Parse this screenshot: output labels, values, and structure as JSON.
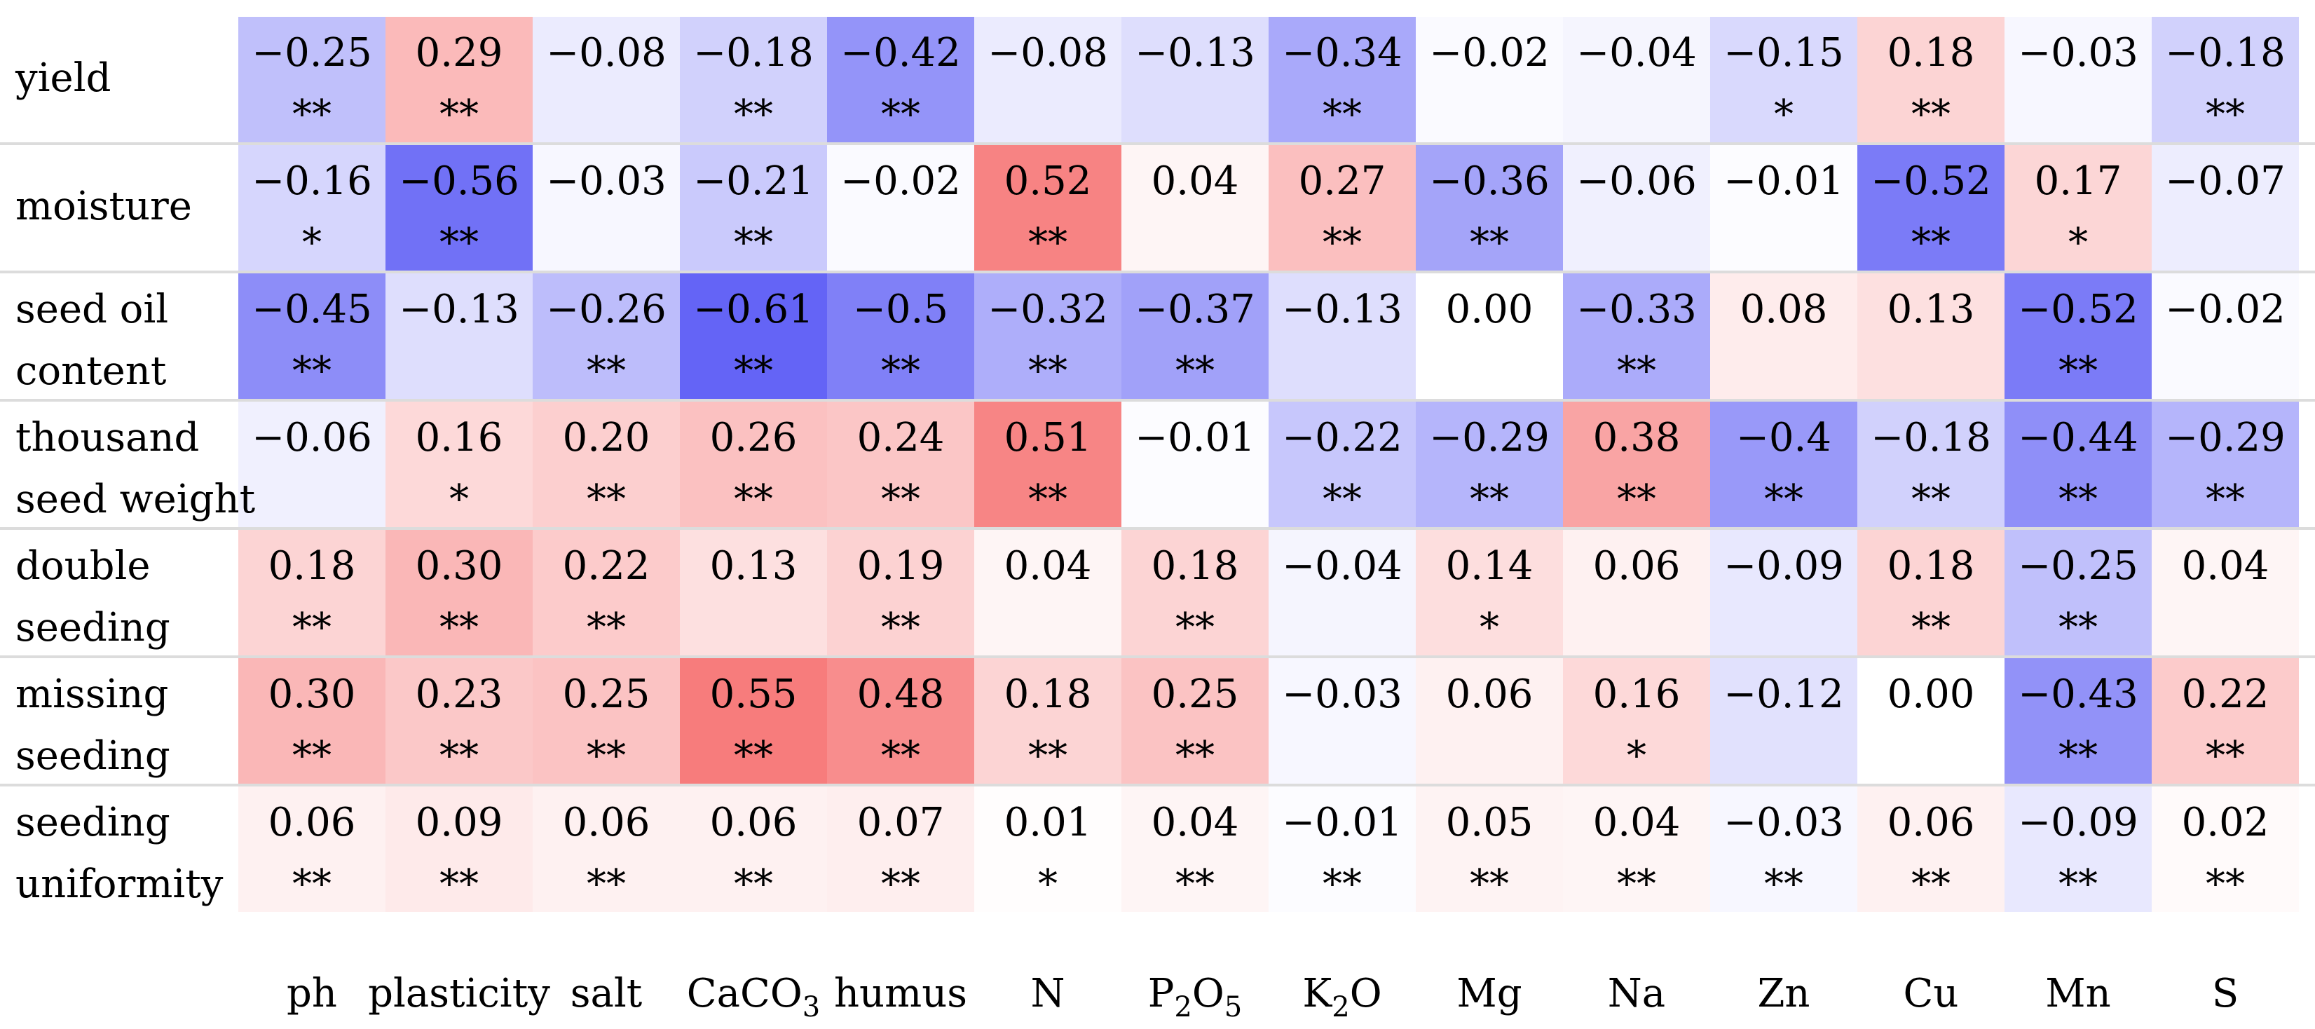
{
  "chart_data": {
    "type": "heatmap",
    "title": "",
    "xlabel": "",
    "ylabel": "",
    "rows": [
      "yield",
      "moisture",
      "seed oil content",
      "thousand seed weight",
      "double seeding",
      "missing seeding",
      "seeding uniformity"
    ],
    "row_label_lines": [
      [
        "yield"
      ],
      [
        "moisture"
      ],
      [
        "seed oil",
        "content"
      ],
      [
        "thousand",
        "seed weight"
      ],
      [
        "double",
        "seeding"
      ],
      [
        "missing",
        "seeding"
      ],
      [
        "seeding",
        "uniformity"
      ]
    ],
    "columns": [
      "ph",
      "plasticity",
      "salt",
      "CaCO3",
      "humus",
      "N",
      "P2O5",
      "K2O",
      "Mg",
      "Na",
      "Zn",
      "Cu",
      "Mn",
      "S"
    ],
    "column_labels": [
      {
        "parts": [
          {
            "t": "ph"
          }
        ]
      },
      {
        "parts": [
          {
            "t": "plasticity"
          }
        ]
      },
      {
        "parts": [
          {
            "t": "salt"
          }
        ]
      },
      {
        "parts": [
          {
            "t": "CaCO"
          },
          {
            "t": "3",
            "sub": true
          }
        ]
      },
      {
        "parts": [
          {
            "t": "humus"
          }
        ]
      },
      {
        "parts": [
          {
            "t": "N"
          }
        ]
      },
      {
        "parts": [
          {
            "t": "P"
          },
          {
            "t": "2",
            "sub": true
          },
          {
            "t": "O"
          },
          {
            "t": "5",
            "sub": true
          }
        ]
      },
      {
        "parts": [
          {
            "t": "K"
          },
          {
            "t": "2",
            "sub": true
          },
          {
            "t": "O"
          }
        ]
      },
      {
        "parts": [
          {
            "t": "Mg"
          }
        ]
      },
      {
        "parts": [
          {
            "t": "Na"
          }
        ]
      },
      {
        "parts": [
          {
            "t": "Zn"
          }
        ]
      },
      {
        "parts": [
          {
            "t": "Cu"
          }
        ]
      },
      {
        "parts": [
          {
            "t": "Mn"
          }
        ]
      },
      {
        "parts": [
          {
            "t": "S"
          }
        ]
      }
    ],
    "values": [
      [
        -0.25,
        0.29,
        -0.08,
        -0.18,
        -0.42,
        -0.08,
        -0.13,
        -0.34,
        -0.02,
        -0.04,
        -0.15,
        0.18,
        -0.03,
        -0.18
      ],
      [
        -0.16,
        -0.56,
        -0.03,
        -0.21,
        -0.02,
        0.52,
        0.04,
        0.27,
        -0.36,
        -0.06,
        -0.01,
        -0.52,
        0.17,
        -0.07
      ],
      [
        -0.45,
        -0.13,
        -0.26,
        -0.61,
        -0.5,
        -0.32,
        -0.37,
        -0.13,
        0.0,
        -0.33,
        0.08,
        0.13,
        -0.52,
        -0.02
      ],
      [
        -0.06,
        0.16,
        0.2,
        0.26,
        0.24,
        0.51,
        -0.01,
        -0.22,
        -0.29,
        0.38,
        -0.4,
        -0.18,
        -0.44,
        -0.29
      ],
      [
        0.18,
        0.3,
        0.22,
        0.13,
        0.19,
        0.04,
        0.18,
        -0.04,
        0.14,
        0.06,
        -0.09,
        0.18,
        -0.25,
        0.04
      ],
      [
        0.3,
        0.23,
        0.25,
        0.55,
        0.48,
        0.18,
        0.25,
        -0.03,
        0.06,
        0.16,
        -0.12,
        0.0,
        -0.43,
        0.22
      ],
      [
        0.06,
        0.09,
        0.06,
        0.06,
        0.07,
        0.01,
        0.04,
        -0.01,
        0.05,
        0.04,
        -0.03,
        0.06,
        -0.09,
        0.02
      ]
    ],
    "labels": [
      [
        "−0.25",
        "0.29",
        "−0.08",
        "−0.18",
        "−0.42",
        "−0.08",
        "−0.13",
        "−0.34",
        "−0.02",
        "−0.04",
        "−0.15",
        "0.18",
        "−0.03",
        "−0.18"
      ],
      [
        "−0.16",
        "−0.56",
        "−0.03",
        "−0.21",
        "−0.02",
        "0.52",
        "0.04",
        "0.27",
        "−0.36",
        "−0.06",
        "−0.01",
        "−0.52",
        "0.17",
        "−0.07"
      ],
      [
        "−0.45",
        "−0.13",
        "−0.26",
        "−0.61",
        "−0.5",
        "−0.32",
        "−0.37",
        "−0.13",
        "0.00",
        "−0.33",
        "0.08",
        "0.13",
        "−0.52",
        "−0.02"
      ],
      [
        "−0.06",
        "0.16",
        "0.20",
        "0.26",
        "0.24",
        "0.51",
        "−0.01",
        "−0.22",
        "−0.29",
        "0.38",
        "−0.4",
        "−0.18",
        "−0.44",
        "−0.29"
      ],
      [
        "0.18",
        "0.30",
        "0.22",
        "0.13",
        "0.19",
        "0.04",
        "0.18",
        "−0.04",
        "0.14",
        "0.06",
        "−0.09",
        "0.18",
        "−0.25",
        "0.04"
      ],
      [
        "0.30",
        "0.23",
        "0.25",
        "0.55",
        "0.48",
        "0.18",
        "0.25",
        "−0.03",
        "0.06",
        "0.16",
        "−0.12",
        "0.00",
        "−0.43",
        "0.22"
      ],
      [
        "0.06",
        "0.09",
        "0.06",
        "0.06",
        "0.07",
        "0.01",
        "0.04",
        "−0.01",
        "0.05",
        "0.04",
        "−0.03",
        "0.06",
        "−0.09",
        "0.02"
      ]
    ],
    "significance": [
      [
        "**",
        "**",
        "",
        "**",
        "**",
        "",
        "",
        "**",
        "",
        "",
        "*",
        "**",
        "",
        "**"
      ],
      [
        "*",
        "**",
        "",
        "**",
        "",
        "**",
        "",
        "**",
        "**",
        "",
        "",
        "**",
        "*",
        ""
      ],
      [
        "**",
        "",
        "**",
        "**",
        "**",
        "**",
        "**",
        "",
        "",
        "**",
        "",
        "",
        "**",
        ""
      ],
      [
        "",
        "*",
        "**",
        "**",
        "**",
        "**",
        "",
        "**",
        "**",
        "**",
        "**",
        "**",
        "**",
        "**"
      ],
      [
        "**",
        "**",
        "**",
        "",
        "**",
        "",
        "**",
        "",
        "*",
        "",
        "",
        "**",
        "**",
        ""
      ],
      [
        "**",
        "**",
        "**",
        "**",
        "**",
        "**",
        "**",
        "",
        "",
        "*",
        "",
        "",
        "**",
        "**"
      ],
      [
        "**",
        "**",
        "**",
        "**",
        "**",
        "*",
        "**",
        "**",
        "**",
        "**",
        "**",
        "**",
        "**",
        "**"
      ]
    ],
    "color_scale": {
      "negative": "#5a5af5",
      "neutral": "#ffffff",
      "positive": "#f56464",
      "vmin": -0.65,
      "vmax": 0.65
    },
    "row_separator_color": "#dcdcdc",
    "legend": "none",
    "grid": false
  }
}
